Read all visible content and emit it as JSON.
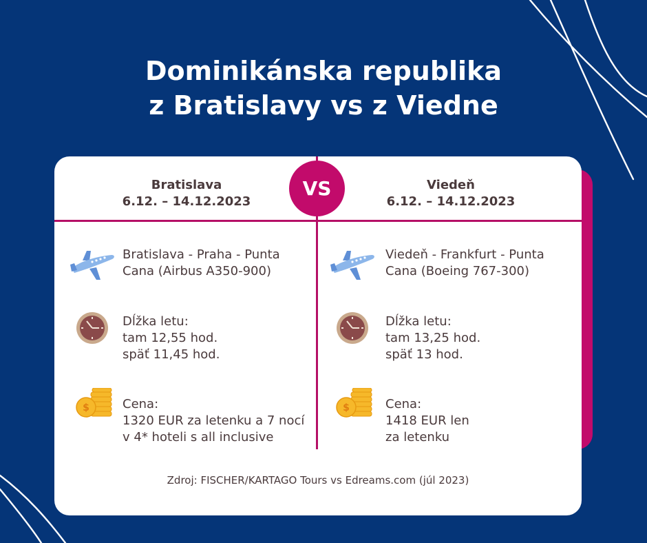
{
  "title": {
    "line1": "Dominikánska republika",
    "line2": "z Bratislavy vs z Viedne"
  },
  "vs_label": "VS",
  "colors": {
    "background": "#053578",
    "accent": "#c20b6b",
    "card": "#ffffff",
    "text": "#4a3a3c"
  },
  "left": {
    "city": "Bratislava",
    "dates": "6.12. – 14.12.2023",
    "route": [
      "Bratislava - Praha - Punta",
      "Cana (Airbus A350-900)"
    ],
    "duration": [
      "Dĺžka letu:",
      "tam 12,55 hod.",
      "späť 11,45 hod."
    ],
    "price": [
      "Cena:",
      "1320 EUR za letenku a 7 nocí",
      "v 4* hoteli s all inclusive"
    ]
  },
  "right": {
    "city": "Viedeň",
    "dates": "6.12. – 14.12.2023",
    "route": [
      "Viedeň - Frankfurt - Punta",
      "Cana (Boeing 767-300)"
    ],
    "duration": [
      "Dĺžka letu:",
      "tam 13,25 hod.",
      "späť 13 hod."
    ],
    "price": [
      "Cena:",
      "1418 EUR len",
      "za letenku"
    ]
  },
  "icons": [
    "airplane-icon",
    "clock-icon",
    "coins-icon"
  ],
  "source": "Zdroj: FISCHER/KARTAGO Tours vs Edreams.com (júl 2023)"
}
